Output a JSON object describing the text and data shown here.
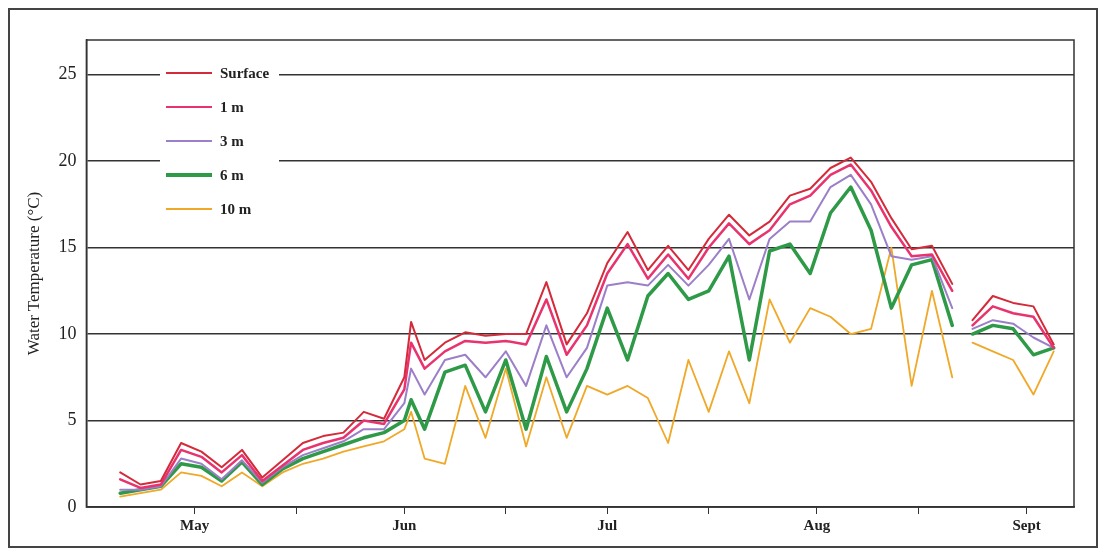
{
  "chart_data": {
    "type": "line",
    "ylabel": "Water Temperature (°C)",
    "x": [
      "--04-20",
      "--04-23",
      "--04-26",
      "--04-29",
      "--05-02",
      "--05-05",
      "--05-08",
      "--05-11",
      "--05-14",
      "--05-17",
      "--05-20",
      "--05-23",
      "--05-26",
      "--05-29",
      "--06-01",
      "--06-02",
      "--06-04",
      "--06-07",
      "--06-10",
      "--06-13",
      "--06-16",
      "--06-19",
      "--06-22",
      "--06-25",
      "--06-28",
      "--07-01",
      "--07-04",
      "--07-07",
      "--07-10",
      "--07-13",
      "--07-16",
      "--07-19",
      "--07-22",
      "--07-25",
      "--07-28",
      "--07-31",
      "--08-03",
      "--08-06",
      "--08-09",
      "--08-12",
      "--08-15",
      "--08-18",
      "--08-21",
      "--08-22",
      "--08-24",
      "--08-27",
      "--08-30",
      "--09-02",
      "--09-05"
    ],
    "series": [
      {
        "name": "Surface",
        "color": "#d42a3a",
        "values": [
          2.0,
          1.3,
          1.5,
          3.7,
          3.2,
          2.3,
          3.3,
          1.7,
          2.7,
          3.7,
          4.1,
          4.3,
          5.5,
          5.1,
          7.5,
          10.7,
          8.5,
          9.5,
          10.1,
          9.9,
          10.0,
          10.0,
          13.0,
          9.4,
          11.2,
          14.1,
          15.9,
          13.7,
          15.1,
          13.7,
          15.5,
          16.9,
          15.7,
          16.5,
          18.0,
          18.4,
          19.6,
          20.2,
          18.8,
          16.7,
          14.9,
          15.1,
          12.9,
          null,
          10.8,
          12.2,
          11.8,
          11.6,
          9.4
        ]
      },
      {
        "name": "1 m",
        "color": "#e8336e",
        "values": [
          1.6,
          1.1,
          1.3,
          3.3,
          2.9,
          2.0,
          3.0,
          1.5,
          2.4,
          3.3,
          3.7,
          4.0,
          5.0,
          4.8,
          6.8,
          9.5,
          8.0,
          9.0,
          9.6,
          9.5,
          9.6,
          9.4,
          12.0,
          8.8,
          10.5,
          13.5,
          15.2,
          13.2,
          14.6,
          13.2,
          15.0,
          16.4,
          15.2,
          16.0,
          17.5,
          18.0,
          19.2,
          19.8,
          18.3,
          16.2,
          14.5,
          14.6,
          12.5,
          null,
          10.5,
          11.6,
          11.2,
          11.0,
          9.2
        ]
      },
      {
        "name": "3 m",
        "color": "#9b7fc9",
        "values": [
          1.0,
          1.0,
          1.2,
          2.8,
          2.5,
          1.6,
          2.7,
          1.4,
          2.3,
          3.0,
          3.4,
          3.8,
          4.5,
          4.5,
          6.0,
          8.0,
          6.5,
          8.5,
          8.8,
          7.5,
          9.0,
          7.0,
          10.5,
          7.5,
          9.2,
          12.8,
          13.0,
          12.8,
          14.0,
          12.8,
          14.0,
          15.5,
          12.0,
          15.5,
          16.5,
          16.5,
          18.5,
          19.2,
          17.5,
          14.5,
          14.3,
          14.5,
          11.5,
          null,
          10.3,
          10.8,
          10.6,
          9.8,
          9.2
        ]
      },
      {
        "name": "6 m",
        "color": "#2e9a48",
        "values": [
          0.8,
          1.0,
          1.2,
          2.5,
          2.3,
          1.5,
          2.6,
          1.3,
          2.2,
          2.8,
          3.2,
          3.6,
          4.0,
          4.3,
          5.0,
          6.2,
          4.5,
          7.8,
          8.2,
          5.5,
          8.5,
          4.5,
          8.7,
          5.5,
          8.0,
          11.5,
          8.5,
          12.2,
          13.5,
          12.0,
          12.5,
          14.5,
          8.5,
          14.8,
          15.2,
          13.5,
          17.0,
          18.5,
          16.0,
          11.5,
          14.0,
          14.3,
          10.5,
          null,
          10.0,
          10.5,
          10.3,
          8.8,
          9.2
        ]
      },
      {
        "name": "10 m",
        "color": "#f0a828",
        "values": [
          0.6,
          0.8,
          1.0,
          2.0,
          1.8,
          1.2,
          2.0,
          1.2,
          2.0,
          2.5,
          2.8,
          3.2,
          3.5,
          3.8,
          4.5,
          5.5,
          2.8,
          2.5,
          7.0,
          4.0,
          8.0,
          3.5,
          7.5,
          4.0,
          7.0,
          6.5,
          7.0,
          6.3,
          3.7,
          8.5,
          5.5,
          9.0,
          6.0,
          12.0,
          9.5,
          11.5,
          11.0,
          10.0,
          10.3,
          15.0,
          7.0,
          12.5,
          7.5,
          null,
          9.5,
          9.0,
          8.5,
          6.5,
          9.0
        ]
      }
    ],
    "xlim": [
      "--04-15",
      "--09-08"
    ],
    "xticks": [
      {
        "value": "--05-01",
        "label": "May"
      },
      {
        "value": "--05-16",
        "label": null
      },
      {
        "value": "--06-01",
        "label": "Jun"
      },
      {
        "value": "--06-16",
        "label": null
      },
      {
        "value": "--07-01",
        "label": "Jul"
      },
      {
        "value": "--07-16",
        "label": null
      },
      {
        "value": "--08-01",
        "label": "Aug"
      },
      {
        "value": "--08-16",
        "label": null
      },
      {
        "value": "--09-01",
        "label": "Sept"
      }
    ],
    "ylim": [
      0,
      27
    ],
    "yticks": [
      0,
      5,
      10,
      15,
      20,
      25
    ],
    "grid": "y",
    "legend": "top left",
    "marker": "none",
    "line_style": "solid"
  }
}
